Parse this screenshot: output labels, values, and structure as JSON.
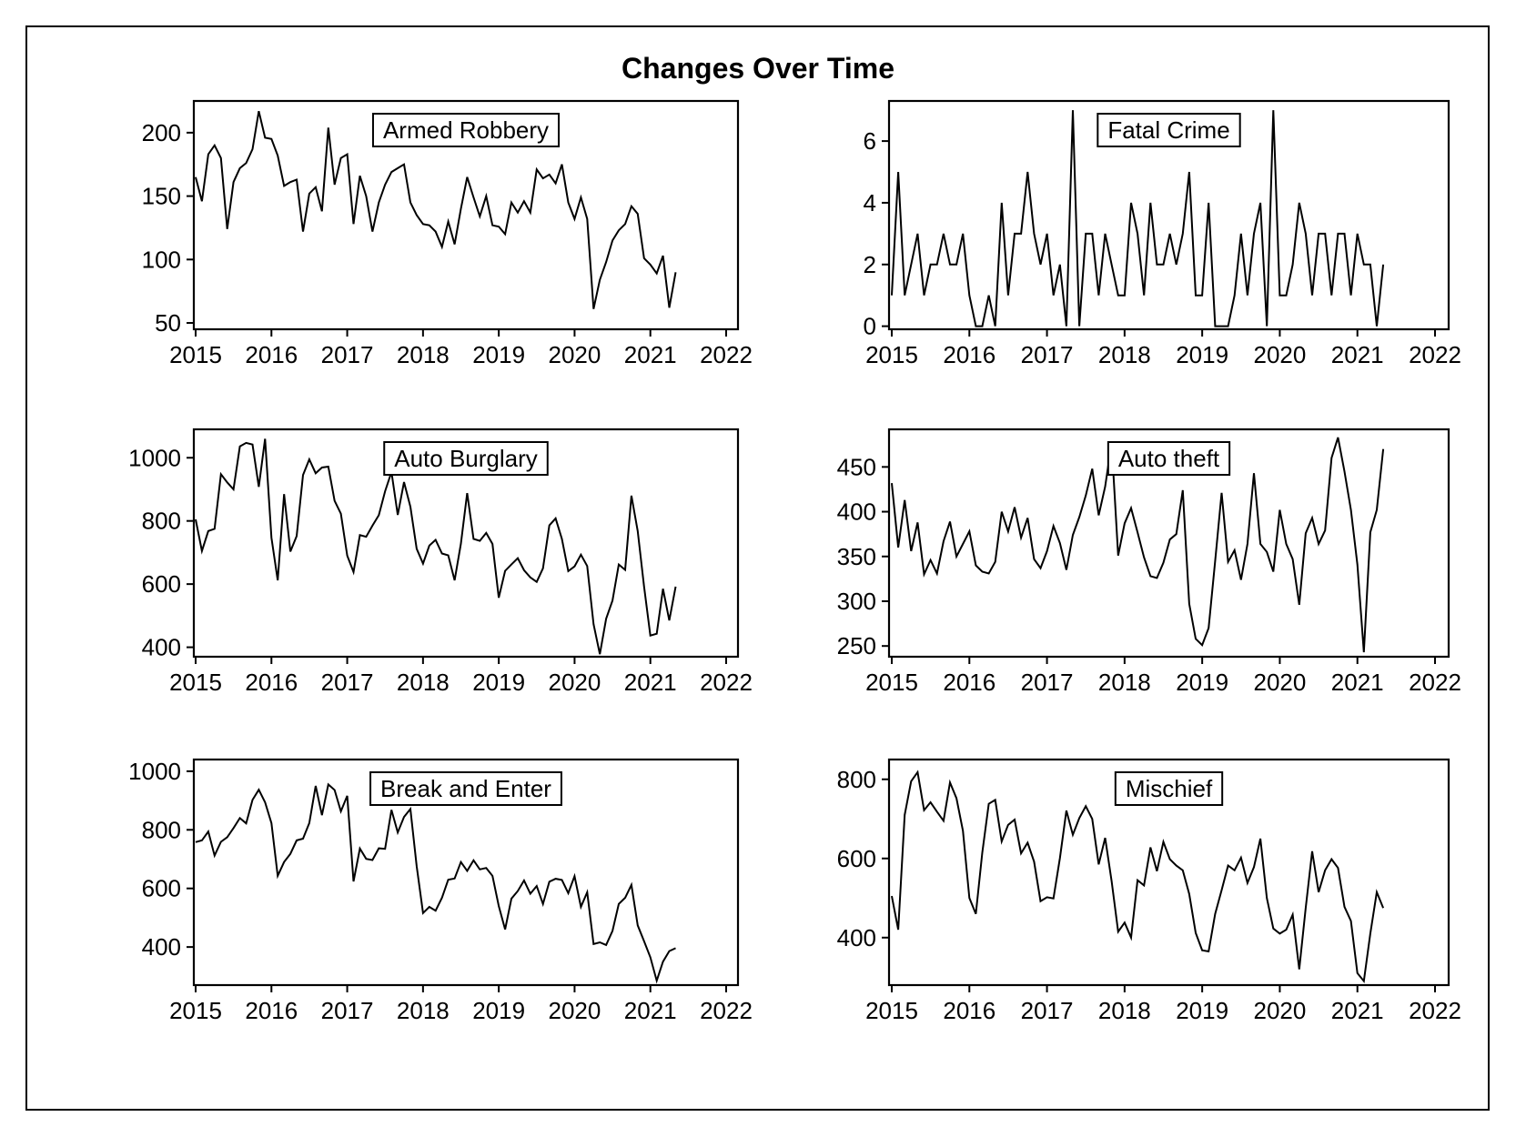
{
  "title": "Changes Over Time",
  "chart_data": [
    {
      "type": "line",
      "series": [
        {
          "name": "Armed Robbery",
          "values": [
            165,
            146,
            183,
            190,
            180,
            124,
            161,
            172,
            176,
            187,
            217,
            196,
            195,
            182,
            158,
            161,
            163,
            122,
            152,
            157,
            138,
            204,
            159,
            180,
            183,
            128,
            166,
            150,
            122,
            145,
            159,
            169,
            172,
            175,
            145,
            135,
            128,
            127,
            122,
            110,
            130,
            112,
            140,
            165,
            149,
            134,
            150,
            127,
            126,
            120,
            145,
            137,
            146,
            137,
            171,
            164,
            167,
            160,
            175,
            145,
            132,
            149,
            132,
            61,
            84,
            98,
            115,
            123,
            128,
            142,
            136,
            101,
            96,
            89,
            103,
            62,
            90
          ]
        }
      ],
      "x_start": "2015-01",
      "x_step": "monthly",
      "xlim": [
        2015,
        2022
      ],
      "xticks": [
        "2015",
        "2016",
        "2017",
        "2018",
        "2019",
        "2020",
        "2021",
        "2022"
      ],
      "ylim": [
        45,
        225
      ],
      "yticks": [
        "50",
        "100",
        "150",
        "200"
      ],
      "legend_position": "top-center",
      "grid": false
    },
    {
      "type": "line",
      "series": [
        {
          "name": "Fatal Crime",
          "values": [
            1,
            5,
            1,
            2,
            3,
            1,
            2,
            2,
            3,
            2,
            2,
            3,
            1,
            0,
            0,
            1,
            0,
            4,
            1,
            3,
            3,
            5,
            3,
            2,
            3,
            1,
            2,
            0,
            7,
            0,
            3,
            3,
            1,
            3,
            2,
            1,
            1,
            4,
            3,
            1,
            4,
            2,
            2,
            3,
            2,
            3,
            5,
            1,
            1,
            4,
            0,
            0,
            0,
            1,
            3,
            1,
            3,
            4,
            0,
            7,
            1,
            1,
            2,
            4,
            3,
            1,
            3,
            3,
            1,
            3,
            3,
            1,
            3,
            2,
            2,
            0,
            2
          ]
        }
      ],
      "x_start": "2015-01",
      "x_step": "monthly",
      "xlim": [
        2015,
        2022
      ],
      "xticks": [
        "2015",
        "2016",
        "2017",
        "2018",
        "2019",
        "2020",
        "2021",
        "2022"
      ],
      "ylim": [
        -0.1,
        7.3
      ],
      "yticks": [
        "0",
        "2",
        "4",
        "6"
      ],
      "legend_position": "top-center",
      "grid": false
    },
    {
      "type": "line",
      "series": [
        {
          "name": "Auto Burglary",
          "values": [
            805,
            705,
            768,
            775,
            948,
            922,
            900,
            1036,
            1047,
            1042,
            908,
            1060,
            747,
            612,
            885,
            703,
            752,
            945,
            995,
            951,
            969,
            972,
            864,
            823,
            690,
            638,
            755,
            750,
            785,
            818,
            894,
            955,
            819,
            923,
            845,
            712,
            665,
            722,
            740,
            697,
            691,
            612,
            728,
            888,
            743,
            737,
            762,
            727,
            557,
            642,
            662,
            682,
            644,
            621,
            607,
            650,
            786,
            808,
            743,
            641,
            656,
            693,
            657,
            473,
            378,
            490,
            548,
            662,
            645,
            880,
            768,
            592,
            437,
            443,
            585,
            485,
            592
          ]
        }
      ],
      "x_start": "2015-01",
      "x_step": "monthly",
      "xlim": [
        2015,
        2022
      ],
      "xticks": [
        "2015",
        "2016",
        "2017",
        "2018",
        "2019",
        "2020",
        "2021",
        "2022"
      ],
      "ylim": [
        370,
        1090
      ],
      "yticks": [
        "400",
        "600",
        "800",
        "1000"
      ],
      "legend_position": "top-center",
      "grid": false
    },
    {
      "type": "line",
      "series": [
        {
          "name": "Auto theft",
          "values": [
            432,
            360,
            413,
            356,
            388,
            330,
            346,
            331,
            367,
            389,
            350,
            364,
            378,
            340,
            333,
            331,
            344,
            400,
            378,
            405,
            371,
            393,
            347,
            337,
            356,
            384,
            365,
            335,
            374,
            394,
            418,
            448,
            396,
            428,
            477,
            351,
            387,
            404,
            377,
            349,
            328,
            326,
            343,
            369,
            375,
            424,
            297,
            258,
            251,
            270,
            345,
            421,
            344,
            357,
            324,
            364,
            443,
            364,
            355,
            333,
            402,
            364,
            347,
            296,
            376,
            393,
            364,
            379,
            460,
            483,
            445,
            402,
            341,
            243,
            377,
            402,
            470
          ]
        }
      ],
      "x_start": "2015-01",
      "x_step": "monthly",
      "xlim": [
        2015,
        2022
      ],
      "xticks": [
        "2015",
        "2016",
        "2017",
        "2018",
        "2019",
        "2020",
        "2021",
        "2022"
      ],
      "ylim": [
        238,
        492
      ],
      "yticks": [
        "250",
        "300",
        "350",
        "400",
        "450"
      ],
      "legend_position": "top-center",
      "grid": false
    },
    {
      "type": "line",
      "series": [
        {
          "name": "Break and Enter",
          "values": [
            758,
            764,
            794,
            712,
            759,
            775,
            806,
            840,
            822,
            902,
            937,
            894,
            823,
            643,
            690,
            718,
            764,
            770,
            823,
            950,
            850,
            955,
            936,
            863,
            916,
            624,
            736,
            701,
            697,
            737,
            735,
            868,
            791,
            844,
            871,
            676,
            516,
            537,
            524,
            568,
            630,
            634,
            690,
            660,
            696,
            665,
            670,
            643,
            540,
            460,
            565,
            591,
            627,
            582,
            608,
            547,
            623,
            633,
            629,
            584,
            642,
            537,
            587,
            410,
            416,
            407,
            455,
            547,
            568,
            612,
            474,
            420,
            365,
            285,
            350,
            386,
            396
          ]
        }
      ],
      "x_start": "2015-01",
      "x_step": "monthly",
      "xlim": [
        2015,
        2022
      ],
      "xticks": [
        "2015",
        "2016",
        "2017",
        "2018",
        "2019",
        "2020",
        "2021",
        "2022"
      ],
      "ylim": [
        270,
        1040
      ],
      "yticks": [
        "400",
        "600",
        "800",
        "1000"
      ],
      "legend_position": "top-center",
      "grid": false
    },
    {
      "type": "line",
      "series": [
        {
          "name": "Mischief",
          "values": [
            505,
            420,
            710,
            795,
            818,
            722,
            742,
            718,
            695,
            792,
            752,
            670,
            500,
            460,
            615,
            738,
            748,
            643,
            685,
            698,
            613,
            640,
            592,
            492,
            502,
            499,
            601,
            721,
            660,
            702,
            732,
            700,
            585,
            652,
            543,
            415,
            438,
            400,
            545,
            532,
            628,
            568,
            642,
            598,
            582,
            570,
            510,
            412,
            368,
            365,
            460,
            520,
            582,
            570,
            602,
            538,
            578,
            650,
            500,
            423,
            410,
            420,
            458,
            320,
            475,
            618,
            515,
            570,
            598,
            576,
            478,
            442,
            310,
            290,
            410,
            515,
            475
          ]
        }
      ],
      "x_start": "2015-01",
      "x_step": "monthly",
      "xlim": [
        2015,
        2022
      ],
      "xticks": [
        "2015",
        "2016",
        "2017",
        "2018",
        "2019",
        "2020",
        "2021",
        "2022"
      ],
      "ylim": [
        280,
        850
      ],
      "yticks": [
        "400",
        "600",
        "800"
      ],
      "legend_position": "top-center",
      "grid": false
    }
  ]
}
